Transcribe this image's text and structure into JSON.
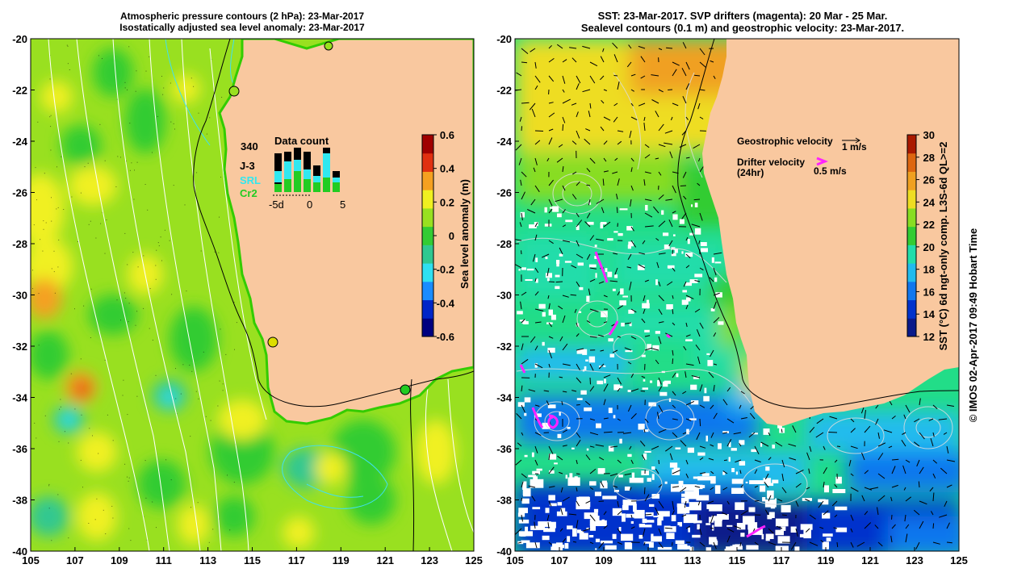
{
  "left_panel": {
    "title_line1": "Atmospheric pressure contours (2 hPa): 23-Mar-2017",
    "title_line2": "Isostatically adjusted sea level anomaly: 23-Mar-2017",
    "lon_ticks": [
      "105",
      "107",
      "109",
      "111",
      "113",
      "115",
      "117",
      "119",
      "121",
      "123",
      "125"
    ],
    "lat_ticks": [
      "-20",
      "-22",
      "-24",
      "-26",
      "-28",
      "-30",
      "-32",
      "-34",
      "-36",
      "-38",
      "-40"
    ],
    "colorbar": {
      "label": "Sea level anomaly (m)",
      "ticks": [
        "0.6",
        "0.4",
        "0.2",
        "0",
        "-0.2",
        "-0.4",
        "-0.6"
      ]
    },
    "inset": {
      "title": "Data count",
      "count": "340",
      "legend": [
        {
          "name": "J-3",
          "color": "#000000"
        },
        {
          "name": "SRL",
          "color": "#30e8f0"
        },
        {
          "name": "Cr2",
          "color": "#22cc22"
        }
      ],
      "axis_ticks": [
        "-5d",
        "0",
        "5"
      ]
    }
  },
  "right_panel": {
    "title_line1": "SST: 23-Mar-2017. SVP drifters (magenta): 20 Mar - 25 Mar.",
    "title_line2": "Sealevel contours (0.1 m) and geostrophic velocity: 23-Mar-2017.",
    "lon_ticks": [
      "105",
      "107",
      "109",
      "111",
      "113",
      "115",
      "117",
      "119",
      "121",
      "123",
      "125"
    ],
    "lat_ticks": [
      "-20",
      "-22",
      "-24",
      "-26",
      "-28",
      "-30",
      "-32",
      "-34",
      "-36",
      "-38",
      "-40"
    ],
    "colorbar": {
      "label": "SST (°C) 6d ngt-only comp. L3S-6d QL>=2",
      "ticks": [
        "30",
        "28",
        "26",
        "24",
        "22",
        "20",
        "18",
        "16",
        "14",
        "12"
      ]
    },
    "legend": {
      "geo_label": "Geostrophic velocity",
      "geo_scale": "1 m/s",
      "drifter_label_1": "Drifter velocity",
      "drifter_label_2": "(24hr)",
      "drifter_scale": "0.5 m/s"
    }
  },
  "credit": "© IMOS 02-Apr-2017 09:49 Hobart Time",
  "colors": {
    "land": "#f9c89f",
    "slaPalette": [
      "#000080",
      "#0026c8",
      "#1a8cff",
      "#30e0f0",
      "#30c890",
      "#33cc33",
      "#99e020",
      "#f0f020",
      "#f5a020",
      "#e03010",
      "#a00000"
    ],
    "sstPalette": [
      "#0a1a8a",
      "#0033cc",
      "#1177ee",
      "#22bbee",
      "#22ddaa",
      "#33cc33",
      "#88dd22",
      "#eedd22",
      "#f0a020",
      "#dd6610",
      "#aa1a00"
    ]
  }
}
